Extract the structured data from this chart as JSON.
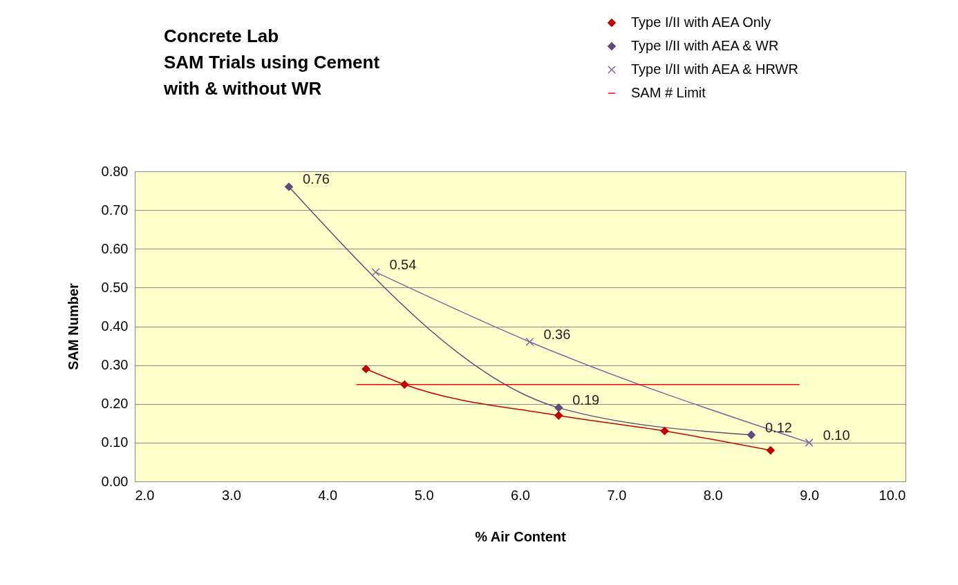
{
  "chart_data": {
    "type": "line",
    "title": [
      "Concrete Lab",
      "SAM Trials using Cement",
      "with & without WR"
    ],
    "xlabel": "% Air Content",
    "ylabel": "SAM Number",
    "xlim": [
      2,
      10
    ],
    "xticks": [
      {
        "value": 2,
        "label": "2.0"
      },
      {
        "value": 3,
        "label": "3.0"
      },
      {
        "value": 4,
        "label": "4.0"
      },
      {
        "value": 5,
        "label": "5.0"
      },
      {
        "value": 6,
        "label": "6.0"
      },
      {
        "value": 7,
        "label": "7.0"
      },
      {
        "value": 8,
        "label": "8.0"
      },
      {
        "value": 9,
        "label": "9.0"
      },
      {
        "value": 10,
        "label": "10.0"
      }
    ],
    "ylim": [
      0,
      0.8
    ],
    "yticks": [
      {
        "value": 0,
        "label": "0.00"
      },
      {
        "value": 0.1,
        "label": "0.10"
      },
      {
        "value": 0.2,
        "label": "0.20"
      },
      {
        "value": 0.3,
        "label": "0.30"
      },
      {
        "value": 0.4,
        "label": "0.40"
      },
      {
        "value": 0.5,
        "label": "0.50"
      },
      {
        "value": 0.6,
        "label": "0.60"
      },
      {
        "value": 0.7,
        "label": "0.70"
      },
      {
        "value": 0.8,
        "label": "0.80"
      }
    ],
    "grid": "y",
    "legend": "top right",
    "line_style": "solid",
    "series": [
      {
        "name": "Type I/II with AEA Only",
        "color": "#c00000",
        "marker": "diamond",
        "x": [
          4.4,
          4.8,
          6.4,
          7.5,
          8.6
        ],
        "values": [
          0.29,
          0.25,
          0.17,
          0.13,
          0.08
        ]
      },
      {
        "name": "Type I/II with AEA & WR",
        "color": "#604a7b",
        "marker": "diamond",
        "x": [
          3.6,
          6.4,
          8.4
        ],
        "values": [
          0.76,
          0.19,
          0.12
        ],
        "value_labels": [
          "0.76",
          "0.19",
          "0.12"
        ]
      },
      {
        "name": "Type I/II with AEA & HRWR",
        "color": "#8064a2",
        "marker": "cross",
        "x": [
          4.5,
          6.1,
          9.0
        ],
        "values": [
          0.54,
          0.36,
          0.1
        ],
        "value_labels": [
          "0.54",
          "0.36",
          "0.10"
        ]
      },
      {
        "name": "SAM # Limit",
        "color": "#ff0000",
        "marker": "none",
        "x": [
          4.3,
          8.9
        ],
        "values": [
          0.25,
          0.25
        ]
      }
    ]
  }
}
